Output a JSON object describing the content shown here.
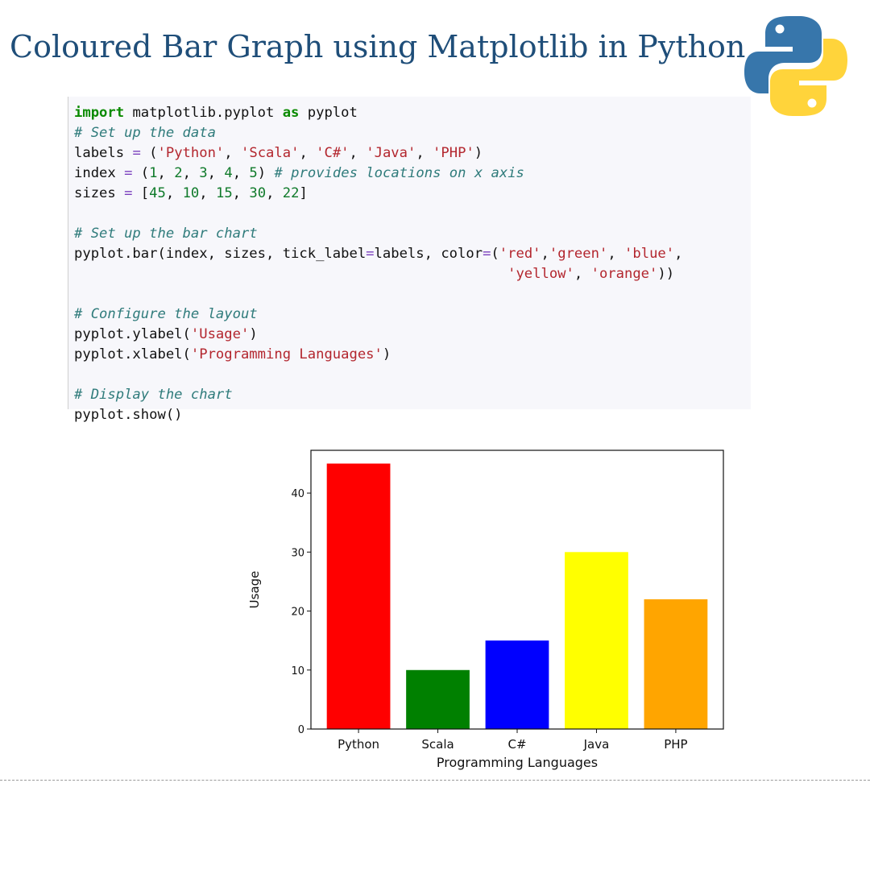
{
  "header": {
    "title": "Coloured Bar Graph using Matplotlib in Python",
    "logo_icon": "python-logo-icon"
  },
  "code": {
    "lines": [
      [
        {
          "t": "kw",
          "v": "import"
        },
        {
          "t": "tx",
          "v": " matplotlib.pyplot "
        },
        {
          "t": "kw",
          "v": "as"
        },
        {
          "t": "tx",
          "v": " pyplot"
        }
      ],
      [
        {
          "t": "cm",
          "v": "# Set up the data"
        }
      ],
      [
        {
          "t": "tx",
          "v": "labels "
        },
        {
          "t": "op",
          "v": "="
        },
        {
          "t": "tx",
          "v": " ("
        },
        {
          "t": "st",
          "v": "'Python'"
        },
        {
          "t": "tx",
          "v": ", "
        },
        {
          "t": "st",
          "v": "'Scala'"
        },
        {
          "t": "tx",
          "v": ", "
        },
        {
          "t": "st",
          "v": "'C#'"
        },
        {
          "t": "tx",
          "v": ", "
        },
        {
          "t": "st",
          "v": "'Java'"
        },
        {
          "t": "tx",
          "v": ", "
        },
        {
          "t": "st",
          "v": "'PHP'"
        },
        {
          "t": "tx",
          "v": ")"
        }
      ],
      [
        {
          "t": "tx",
          "v": "index "
        },
        {
          "t": "op",
          "v": "="
        },
        {
          "t": "tx",
          "v": " ("
        },
        {
          "t": "nm",
          "v": "1"
        },
        {
          "t": "tx",
          "v": ", "
        },
        {
          "t": "nm",
          "v": "2"
        },
        {
          "t": "tx",
          "v": ", "
        },
        {
          "t": "nm",
          "v": "3"
        },
        {
          "t": "tx",
          "v": ", "
        },
        {
          "t": "nm",
          "v": "4"
        },
        {
          "t": "tx",
          "v": ", "
        },
        {
          "t": "nm",
          "v": "5"
        },
        {
          "t": "tx",
          "v": ") "
        },
        {
          "t": "cm",
          "v": "# provides locations on x axis"
        }
      ],
      [
        {
          "t": "tx",
          "v": "sizes "
        },
        {
          "t": "op",
          "v": "="
        },
        {
          "t": "tx",
          "v": " ["
        },
        {
          "t": "nm",
          "v": "45"
        },
        {
          "t": "tx",
          "v": ", "
        },
        {
          "t": "nm",
          "v": "10"
        },
        {
          "t": "tx",
          "v": ", "
        },
        {
          "t": "nm",
          "v": "15"
        },
        {
          "t": "tx",
          "v": ", "
        },
        {
          "t": "nm",
          "v": "30"
        },
        {
          "t": "tx",
          "v": ", "
        },
        {
          "t": "nm",
          "v": "22"
        },
        {
          "t": "tx",
          "v": "]"
        }
      ],
      [],
      [
        {
          "t": "cm",
          "v": "# Set up the bar chart"
        }
      ],
      [
        {
          "t": "tx",
          "v": "pyplot.bar(index, sizes, tick_label"
        },
        {
          "t": "op",
          "v": "="
        },
        {
          "t": "tx",
          "v": "labels, color"
        },
        {
          "t": "op",
          "v": "="
        },
        {
          "t": "tx",
          "v": "("
        },
        {
          "t": "st",
          "v": "'red'"
        },
        {
          "t": "tx",
          "v": ","
        },
        {
          "t": "st",
          "v": "'green'"
        },
        {
          "t": "tx",
          "v": ", "
        },
        {
          "t": "st",
          "v": "'blue'"
        },
        {
          "t": "tx",
          "v": ","
        }
      ],
      [
        {
          "t": "tx",
          "v": "                                                    "
        },
        {
          "t": "st",
          "v": "'yellow'"
        },
        {
          "t": "tx",
          "v": ", "
        },
        {
          "t": "st",
          "v": "'orange'"
        },
        {
          "t": "tx",
          "v": "))"
        }
      ],
      [],
      [
        {
          "t": "cm",
          "v": "# Configure the layout"
        }
      ],
      [
        {
          "t": "tx",
          "v": "pyplot.ylabel("
        },
        {
          "t": "st",
          "v": "'Usage'"
        },
        {
          "t": "tx",
          "v": ")"
        }
      ],
      [
        {
          "t": "tx",
          "v": "pyplot.xlabel("
        },
        {
          "t": "st",
          "v": "'Programming Languages'"
        },
        {
          "t": "tx",
          "v": ")"
        }
      ],
      [],
      [
        {
          "t": "cm",
          "v": "# Display the chart"
        }
      ],
      [
        {
          "t": "tx",
          "v": "pyplot.show()"
        }
      ]
    ]
  },
  "chart_data": {
    "type": "bar",
    "categories": [
      "Python",
      "Scala",
      "C#",
      "Java",
      "PHP"
    ],
    "values": [
      45,
      10,
      15,
      30,
      22
    ],
    "colors": [
      "#ff0000",
      "#008000",
      "#0000ff",
      "#ffff00",
      "#ffa500"
    ],
    "title": "",
    "xlabel": "Programming Languages",
    "ylabel": "Usage",
    "ylim": [
      0,
      47.25
    ],
    "xlim": [
      0.4,
      5.6
    ],
    "bar_width": 0.8,
    "yticks": [
      0,
      10,
      20,
      30,
      40
    ],
    "grid": false
  }
}
